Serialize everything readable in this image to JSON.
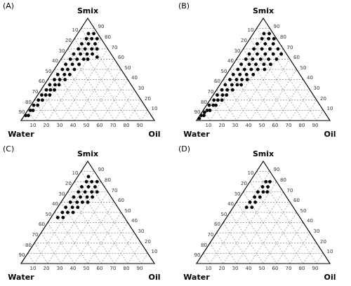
{
  "chart_data": [
    {
      "type": "ternary",
      "title": "(A)",
      "components": [
        "Water",
        "Oil",
        "Smix"
      ],
      "lim": [
        0,
        100
      ],
      "ticks": [
        10,
        20,
        30,
        40,
        50,
        60,
        70,
        80,
        90
      ],
      "grid": true,
      "color": "#000000",
      "marker": "circle",
      "points": [
        [
          94,
          1,
          5
        ],
        [
          92,
          3,
          5
        ],
        [
          88,
          2,
          10
        ],
        [
          86,
          4,
          10
        ],
        [
          83,
          2,
          15
        ],
        [
          80,
          5,
          15
        ],
        [
          77,
          3,
          20
        ],
        [
          74,
          6,
          20
        ],
        [
          72,
          3,
          25
        ],
        [
          69,
          6,
          25
        ],
        [
          66,
          9,
          25
        ],
        [
          66,
          4,
          30
        ],
        [
          63,
          7,
          30
        ],
        [
          60,
          10,
          30
        ],
        [
          61,
          4,
          35
        ],
        [
          57,
          8,
          35
        ],
        [
          54,
          11,
          35
        ],
        [
          55,
          5,
          40
        ],
        [
          51,
          9,
          40
        ],
        [
          47,
          13,
          40
        ],
        [
          50,
          5,
          45
        ],
        [
          45,
          10,
          45
        ],
        [
          41,
          14,
          45
        ],
        [
          44,
          6,
          50
        ],
        [
          40,
          10,
          50
        ],
        [
          35,
          15,
          50
        ],
        [
          39,
          6,
          55
        ],
        [
          34,
          11,
          55
        ],
        [
          29,
          16,
          55
        ],
        [
          33,
          7,
          60
        ],
        [
          28,
          12,
          60
        ],
        [
          23,
          17,
          60
        ],
        [
          20,
          20,
          60
        ],
        [
          28,
          7,
          65
        ],
        [
          23,
          12,
          65
        ],
        [
          18,
          17,
          65
        ],
        [
          14,
          21,
          65
        ],
        [
          22,
          8,
          70
        ],
        [
          17,
          13,
          70
        ],
        [
          12,
          18,
          70
        ],
        [
          8,
          22,
          70
        ],
        [
          17,
          8,
          75
        ],
        [
          12,
          13,
          75
        ],
        [
          7,
          18,
          75
        ],
        [
          11,
          9,
          80
        ],
        [
          7,
          13,
          80
        ],
        [
          3,
          17,
          80
        ],
        [
          7,
          8,
          85
        ],
        [
          3,
          12,
          85
        ],
        [
          12,
          26,
          62
        ]
      ]
    },
    {
      "type": "ternary",
      "title": "(B)",
      "components": [
        "Water",
        "Oil",
        "Smix"
      ],
      "lim": [
        0,
        100
      ],
      "ticks": [
        10,
        20,
        30,
        40,
        50,
        60,
        70,
        80,
        90
      ],
      "grid": true,
      "color": "#000000",
      "marker": "circle",
      "points": [
        [
          97,
          1,
          2
        ],
        [
          94,
          1,
          5
        ],
        [
          92,
          3,
          5
        ],
        [
          90,
          2,
          8
        ],
        [
          87,
          3,
          10
        ],
        [
          85,
          5,
          10
        ],
        [
          83,
          2,
          15
        ],
        [
          80,
          5,
          15
        ],
        [
          78,
          7,
          15
        ],
        [
          77,
          3,
          20
        ],
        [
          74,
          6,
          20
        ],
        [
          71,
          9,
          20
        ],
        [
          72,
          3,
          25
        ],
        [
          68,
          7,
          25
        ],
        [
          65,
          10,
          25
        ],
        [
          66,
          4,
          30
        ],
        [
          62,
          8,
          30
        ],
        [
          58,
          12,
          30
        ],
        [
          61,
          4,
          35
        ],
        [
          56,
          9,
          35
        ],
        [
          52,
          13,
          35
        ],
        [
          49,
          16,
          35
        ],
        [
          55,
          5,
          40
        ],
        [
          50,
          10,
          40
        ],
        [
          46,
          14,
          40
        ],
        [
          42,
          18,
          40
        ],
        [
          50,
          5,
          45
        ],
        [
          45,
          10,
          45
        ],
        [
          40,
          15,
          45
        ],
        [
          35,
          20,
          45
        ],
        [
          44,
          6,
          50
        ],
        [
          39,
          11,
          50
        ],
        [
          34,
          16,
          50
        ],
        [
          29,
          21,
          50
        ],
        [
          24,
          26,
          50
        ],
        [
          39,
          6,
          55
        ],
        [
          33,
          12,
          55
        ],
        [
          28,
          17,
          55
        ],
        [
          22,
          23,
          55
        ],
        [
          17,
          28,
          55
        ],
        [
          33,
          7,
          60
        ],
        [
          28,
          12,
          60
        ],
        [
          22,
          18,
          60
        ],
        [
          16,
          24,
          60
        ],
        [
          10,
          30,
          60
        ],
        [
          28,
          7,
          65
        ],
        [
          22,
          13,
          65
        ],
        [
          16,
          19,
          65
        ],
        [
          10,
          25,
          65
        ],
        [
          4,
          31,
          65
        ],
        [
          22,
          8,
          70
        ],
        [
          16,
          14,
          70
        ],
        [
          10,
          20,
          70
        ],
        [
          4,
          26,
          70
        ],
        [
          17,
          8,
          75
        ],
        [
          11,
          14,
          75
        ],
        [
          5,
          20,
          75
        ],
        [
          11,
          9,
          80
        ],
        [
          6,
          14,
          80
        ],
        [
          2,
          18,
          80
        ],
        [
          7,
          8,
          85
        ],
        [
          3,
          12,
          85
        ]
      ]
    },
    {
      "type": "ternary",
      "title": "(C)",
      "components": [
        "Water",
        "Oil",
        "Smix"
      ],
      "lim": [
        0,
        100
      ],
      "ticks": [
        10,
        20,
        30,
        40,
        50,
        60,
        70,
        80,
        90
      ],
      "grid": true,
      "color": "#000000",
      "marker": "circle",
      "points": [
        [
          50,
          5,
          45
        ],
        [
          46,
          9,
          45
        ],
        [
          44,
          6,
          50
        ],
        [
          40,
          10,
          50
        ],
        [
          36,
          14,
          50
        ],
        [
          39,
          6,
          55
        ],
        [
          34,
          11,
          55
        ],
        [
          30,
          15,
          55
        ],
        [
          33,
          7,
          60
        ],
        [
          28,
          12,
          60
        ],
        [
          24,
          16,
          60
        ],
        [
          20,
          20,
          60
        ],
        [
          28,
          7,
          65
        ],
        [
          23,
          12,
          65
        ],
        [
          18,
          17,
          65
        ],
        [
          14,
          21,
          65
        ],
        [
          22,
          8,
          70
        ],
        [
          17,
          13,
          70
        ],
        [
          12,
          18,
          70
        ],
        [
          8,
          22,
          70
        ],
        [
          17,
          8,
          75
        ],
        [
          12,
          13,
          75
        ],
        [
          7,
          18,
          75
        ],
        [
          11,
          9,
          80
        ],
        [
          7,
          13,
          80
        ],
        [
          3,
          17,
          80
        ],
        [
          7,
          8,
          85
        ]
      ]
    },
    {
      "type": "ternary",
      "title": "(D)",
      "components": [
        "Water",
        "Oil",
        "Smix"
      ],
      "lim": [
        0,
        100
      ],
      "ticks": [
        10,
        20,
        30,
        40,
        50,
        60,
        70,
        80,
        90
      ],
      "grid": true,
      "color": "#000000",
      "marker": "circle",
      "points": [
        [
          35,
          10,
          55
        ],
        [
          31,
          14,
          55
        ],
        [
          30,
          10,
          60
        ],
        [
          26,
          14,
          60
        ],
        [
          24,
          11,
          65
        ],
        [
          20,
          15,
          65
        ],
        [
          19,
          11,
          70
        ],
        [
          15,
          15,
          70
        ],
        [
          12,
          18,
          70
        ],
        [
          13,
          12,
          75
        ],
        [
          9,
          16,
          75
        ],
        [
          8,
          12,
          80
        ],
        [
          5,
          15,
          80
        ]
      ]
    }
  ]
}
